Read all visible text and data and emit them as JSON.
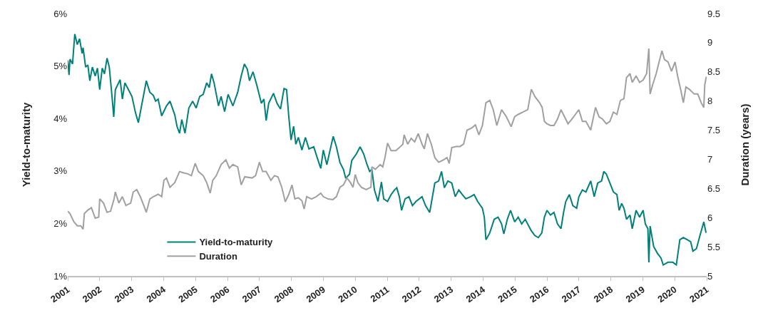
{
  "chart_data": {
    "type": "line",
    "ylabel": "Yield-to-maturity",
    "y2label": "Duration (years)",
    "xlim": [
      2001,
      2021
    ],
    "xticks": [
      2001,
      2002,
      2003,
      2004,
      2005,
      2006,
      2007,
      2008,
      2009,
      2010,
      2011,
      2012,
      2013,
      2014,
      2015,
      2016,
      2017,
      2018,
      2019,
      2020,
      2021
    ],
    "ylim": [
      1,
      6
    ],
    "yticks": [
      {
        "value": 1,
        "label": "1%"
      },
      {
        "value": 2,
        "label": "2%"
      },
      {
        "value": 3,
        "label": "3%"
      },
      {
        "value": 4,
        "label": "4%"
      },
      {
        "value": 5,
        "label": "5%"
      },
      {
        "value": 6,
        "label": "6%"
      }
    ],
    "y2lim": [
      5,
      9.5
    ],
    "y2ticks": [
      5,
      5.5,
      6,
      6.5,
      7,
      7.5,
      8,
      8.5,
      9,
      9.5
    ],
    "legend": "bottom left",
    "marker": "none",
    "line_style": "solid",
    "series": [
      {
        "name": "Yield-to-maturity",
        "color": "#00807a",
        "axis": "y",
        "x": [
          2001.0,
          2001.04,
          2001.07,
          2001.15,
          2001.22,
          2001.3,
          2001.37,
          2001.45,
          2001.48,
          2001.56,
          2001.63,
          2001.69,
          2001.77,
          2001.86,
          2001.93,
          2002.0,
          2002.08,
          2002.15,
          2002.23,
          2002.3,
          2002.38,
          2002.44,
          2002.49,
          2002.64,
          2002.71,
          2002.79,
          2002.9,
          2003.01,
          2003.12,
          2003.21,
          2003.31,
          2003.46,
          2003.57,
          2003.68,
          2003.75,
          2003.83,
          2003.94,
          2004.09,
          2004.2,
          2004.35,
          2004.42,
          2004.5,
          2004.57,
          2004.67,
          2004.79,
          2004.91,
          2005.02,
          2005.13,
          2005.24,
          2005.35,
          2005.43,
          2005.5,
          2005.58,
          2005.72,
          2005.8,
          2005.91,
          2006.02,
          2006.17,
          2006.32,
          2006.43,
          2006.53,
          2006.62,
          2006.69,
          2006.8,
          2006.92,
          2007.06,
          2007.14,
          2007.21,
          2007.29,
          2007.44,
          2007.55,
          2007.66,
          2007.77,
          2007.85,
          2007.92,
          2007.99,
          2008.07,
          2008.14,
          2008.22,
          2008.33,
          2008.44,
          2008.55,
          2008.7,
          2008.81,
          2008.92,
          2009.0,
          2009.11,
          2009.22,
          2009.31,
          2009.41,
          2009.52,
          2009.63,
          2009.7,
          2009.82,
          2009.89,
          2010.04,
          2010.15,
          2010.26,
          2010.37,
          2010.45,
          2010.52,
          2010.6,
          2010.71,
          2010.82,
          2010.89,
          2011.01,
          2011.12,
          2011.23,
          2011.3,
          2011.38,
          2011.45,
          2011.56,
          2011.68,
          2011.79,
          2011.9,
          2012.09,
          2012.2,
          2012.33,
          2012.49,
          2012.61,
          2012.7,
          2012.79,
          2012.9,
          2013.02,
          2013.13,
          2013.24,
          2013.35,
          2013.46,
          2013.61,
          2013.72,
          2013.83,
          2013.98,
          2014.04,
          2014.09,
          2014.21,
          2014.35,
          2014.47,
          2014.58,
          2014.65,
          2014.76,
          2014.86,
          2014.99,
          2015.1,
          2015.21,
          2015.32,
          2015.43,
          2015.51,
          2015.62,
          2015.73,
          2015.84,
          2015.92,
          2016.0,
          2016.11,
          2016.22,
          2016.33,
          2016.44,
          2016.52,
          2016.59,
          2016.7,
          2016.81,
          2016.93,
          2017.0,
          2017.11,
          2017.22,
          2017.37,
          2017.48,
          2017.59,
          2017.71,
          2017.78,
          2017.86,
          2017.97,
          2018.08,
          2018.19,
          2018.26,
          2018.34,
          2018.41,
          2018.49,
          2018.6,
          2018.67,
          2018.79,
          2018.9,
          2019.01,
          2019.08,
          2019.16,
          2019.19,
          2019.23,
          2019.34,
          2019.46,
          2019.57,
          2019.64,
          2019.79,
          2019.94,
          2020.05,
          2020.16,
          2020.27,
          2020.39,
          2020.5,
          2020.57,
          2020.68,
          2020.79,
          2020.91,
          2020.98
        ],
        "values": [
          5.11,
          4.83,
          5.13,
          5.04,
          5.61,
          5.41,
          5.52,
          5.24,
          5.35,
          4.98,
          5.02,
          4.72,
          4.98,
          4.81,
          4.96,
          4.55,
          4.96,
          4.85,
          5.15,
          4.98,
          4.46,
          4.03,
          4.55,
          4.74,
          4.37,
          4.68,
          4.55,
          4.42,
          4.11,
          3.92,
          4.24,
          4.72,
          4.5,
          4.44,
          4.33,
          4.37,
          4.05,
          4.24,
          4.33,
          4.07,
          3.85,
          3.72,
          3.98,
          3.72,
          4.2,
          4.33,
          4.2,
          4.42,
          4.46,
          4.68,
          4.59,
          4.85,
          4.68,
          4.24,
          4.42,
          4.13,
          4.46,
          4.24,
          4.5,
          4.81,
          5.04,
          4.94,
          4.72,
          4.89,
          4.63,
          4.29,
          4.37,
          3.96,
          4.29,
          4.48,
          4.29,
          4.18,
          4.57,
          4.55,
          4.03,
          3.59,
          3.85,
          3.51,
          3.64,
          3.4,
          3.64,
          3.42,
          3.46,
          3.25,
          3.05,
          3.4,
          3.12,
          3.42,
          3.66,
          3.46,
          3.16,
          3.03,
          2.86,
          2.94,
          3.2,
          3.33,
          3.46,
          3.33,
          3.12,
          2.99,
          3.03,
          2.64,
          2.42,
          2.79,
          2.47,
          2.42,
          2.55,
          2.64,
          2.68,
          2.51,
          2.25,
          2.47,
          2.51,
          2.34,
          2.42,
          2.51,
          2.34,
          2.21,
          2.77,
          2.81,
          2.99,
          2.68,
          2.81,
          2.77,
          2.51,
          2.64,
          2.55,
          2.47,
          2.51,
          2.55,
          2.42,
          2.29,
          2.12,
          1.69,
          1.82,
          2.08,
          2.12,
          1.99,
          1.8,
          2.08,
          2.25,
          2.03,
          2.12,
          1.99,
          2.08,
          1.95,
          1.86,
          1.77,
          1.73,
          1.82,
          2.12,
          2.25,
          2.16,
          2.21,
          1.99,
          1.9,
          2.21,
          2.42,
          2.55,
          2.34,
          2.29,
          2.51,
          2.64,
          2.6,
          2.81,
          2.51,
          2.77,
          2.81,
          2.99,
          2.94,
          2.77,
          2.6,
          2.55,
          2.25,
          2.38,
          2.29,
          2.08,
          2.16,
          1.9,
          2.25,
          2.12,
          2.25,
          1.99,
          1.9,
          1.26,
          1.95,
          1.56,
          1.43,
          1.34,
          1.21,
          1.26,
          1.26,
          1.21,
          1.69,
          1.73,
          1.69,
          1.65,
          1.47,
          1.52,
          1.77,
          2.03,
          1.82
        ]
      },
      {
        "name": "Duration",
        "color": "#a0a0a0",
        "axis": "y2",
        "x": [
          2001.0,
          2001.07,
          2001.19,
          2001.3,
          2001.41,
          2001.48,
          2001.52,
          2001.63,
          2001.74,
          2001.86,
          2001.97,
          2002.0,
          2002.12,
          2002.23,
          2002.34,
          2002.45,
          2002.49,
          2002.6,
          2002.71,
          2002.82,
          2002.97,
          2003.05,
          2003.16,
          2003.27,
          2003.38,
          2003.46,
          2003.57,
          2003.68,
          2003.83,
          2003.94,
          2004.01,
          2004.09,
          2004.2,
          2004.35,
          2004.5,
          2004.61,
          2004.76,
          2004.87,
          2004.99,
          2005.09,
          2005.24,
          2005.35,
          2005.46,
          2005.54,
          2005.65,
          2005.8,
          2005.95,
          2006.06,
          2006.17,
          2006.32,
          2006.43,
          2006.54,
          2006.77,
          2006.88,
          2007.0,
          2007.1,
          2007.21,
          2007.36,
          2007.47,
          2007.58,
          2007.7,
          2007.81,
          2007.92,
          2008.02,
          2008.11,
          2008.22,
          2008.33,
          2008.4,
          2008.48,
          2008.63,
          2008.78,
          2008.92,
          2009.0,
          2009.15,
          2009.3,
          2009.41,
          2009.52,
          2009.63,
          2009.74,
          2009.85,
          2009.93,
          2010.0,
          2010.08,
          2010.19,
          2010.34,
          2010.49,
          2010.52,
          2010.63,
          2010.78,
          2010.86,
          2010.93,
          2011.01,
          2011.12,
          2011.27,
          2011.38,
          2011.49,
          2011.53,
          2011.64,
          2011.75,
          2011.86,
          2011.97,
          2012.09,
          2012.16,
          2012.26,
          2012.38,
          2012.49,
          2012.61,
          2012.76,
          2012.87,
          2012.94,
          2013.02,
          2013.16,
          2013.28,
          2013.39,
          2013.5,
          2013.65,
          2013.76,
          2013.87,
          2013.98,
          2014.09,
          2014.21,
          2014.32,
          2014.43,
          2014.58,
          2014.73,
          2014.88,
          2014.99,
          2015.1,
          2015.25,
          2015.4,
          2015.51,
          2015.62,
          2015.77,
          2015.85,
          2015.92,
          2016.0,
          2016.11,
          2016.22,
          2016.33,
          2016.44,
          2016.55,
          2016.66,
          2016.78,
          2016.89,
          2017.0,
          2017.11,
          2017.22,
          2017.37,
          2017.52,
          2017.63,
          2017.74,
          2017.86,
          2017.97,
          2018.08,
          2018.19,
          2018.3,
          2018.41,
          2018.49,
          2018.6,
          2018.67,
          2018.79,
          2018.9,
          2019.01,
          2019.12,
          2019.19,
          2019.23,
          2019.31,
          2019.42,
          2019.53,
          2019.6,
          2019.68,
          2019.79,
          2019.9,
          2020.01,
          2020.09,
          2020.2,
          2020.27,
          2020.35,
          2020.46,
          2020.61,
          2020.72,
          2020.83,
          2020.91,
          2020.94,
          2020.99
        ],
        "values": [
          6.11,
          6.07,
          5.93,
          5.86,
          5.86,
          5.8,
          6.07,
          6.13,
          6.17,
          5.99,
          6.01,
          6.32,
          6.25,
          6.09,
          6.11,
          6.32,
          6.44,
          6.25,
          6.36,
          6.21,
          6.25,
          6.44,
          6.48,
          6.36,
          6.21,
          6.09,
          6.32,
          6.36,
          6.4,
          6.36,
          6.64,
          6.68,
          6.52,
          6.6,
          6.79,
          6.77,
          6.75,
          6.72,
          6.93,
          6.79,
          6.72,
          6.6,
          6.42,
          6.64,
          6.72,
          6.91,
          6.99,
          6.85,
          6.91,
          6.87,
          6.56,
          6.7,
          6.68,
          6.72,
          6.95,
          6.79,
          6.79,
          6.64,
          6.72,
          6.7,
          6.52,
          6.27,
          6.4,
          6.56,
          6.32,
          6.34,
          6.29,
          6.15,
          6.36,
          6.32,
          6.36,
          6.42,
          6.36,
          6.32,
          6.31,
          6.36,
          6.52,
          6.56,
          6.68,
          6.6,
          6.52,
          6.74,
          6.6,
          6.52,
          6.48,
          6.52,
          6.87,
          6.83,
          6.91,
          6.87,
          7.03,
          7.28,
          7.15,
          7.15,
          7.2,
          7.26,
          7.42,
          7.26,
          7.36,
          7.3,
          7.44,
          7.26,
          7.18,
          7.44,
          7.26,
          7.03,
          6.95,
          6.99,
          7.03,
          6.93,
          7.2,
          7.22,
          7.22,
          7.26,
          7.5,
          7.54,
          7.59,
          7.42,
          7.58,
          7.97,
          8.01,
          7.85,
          7.58,
          7.85,
          7.73,
          7.56,
          7.73,
          7.77,
          7.81,
          7.85,
          8.2,
          8.08,
          7.97,
          7.89,
          7.65,
          7.61,
          7.58,
          7.58,
          7.69,
          7.85,
          7.73,
          7.61,
          7.69,
          7.77,
          7.85,
          7.65,
          7.65,
          7.5,
          7.89,
          7.73,
          7.69,
          7.61,
          7.65,
          7.81,
          7.77,
          8.01,
          8.04,
          8.4,
          8.47,
          8.32,
          8.43,
          8.32,
          8.36,
          8.47,
          8.9,
          8.12,
          8.28,
          8.47,
          8.71,
          8.86,
          8.71,
          8.67,
          8.51,
          8.67,
          8.43,
          8.16,
          7.97,
          8.24,
          8.2,
          8.12,
          8.12,
          7.97,
          7.89,
          8.28,
          8.42
        ]
      }
    ]
  }
}
